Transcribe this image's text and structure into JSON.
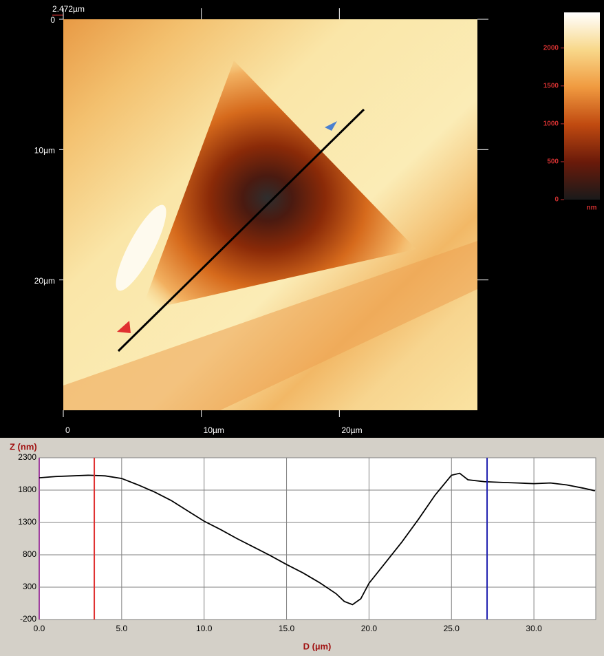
{
  "chart_data": [
    {
      "type": "image",
      "scale_label": "2.472µm",
      "xlim": [
        0,
        30
      ],
      "ylim": [
        0,
        30
      ],
      "xticks": [
        0,
        {
          "value": 10,
          "label": "10µm"
        },
        {
          "value": 20,
          "label": "20µm"
        }
      ],
      "yticks": [
        0,
        {
          "value": 10,
          "label": "10µm"
        },
        {
          "value": 20,
          "label": "20µm"
        }
      ],
      "colorbar": {
        "label": "nm",
        "zlim": [
          0,
          2470
        ],
        "ticks": [
          0,
          500,
          1000,
          1500,
          2000
        ]
      }
    },
    {
      "type": "line",
      "ylabel": "Z (nm)",
      "xlabel": "D (µm)",
      "xlim": [
        0,
        33.75
      ],
      "ylim": [
        -200,
        2300
      ],
      "xticks": [
        {
          "value": 0,
          "label": "0.0"
        },
        {
          "value": 5,
          "label": "5.0"
        },
        {
          "value": 10,
          "label": "10.0"
        },
        {
          "value": 15,
          "label": "15.0"
        },
        {
          "value": 20,
          "label": "20.0"
        },
        {
          "value": 25,
          "label": "25.0"
        },
        {
          "value": 30,
          "label": "30.0"
        }
      ],
      "yticks": [
        -200,
        300,
        800,
        1300,
        1800,
        2300
      ],
      "grid": true,
      "x": [
        0,
        1,
        2,
        3,
        4,
        5,
        6,
        7,
        8,
        9,
        10,
        11,
        12,
        13,
        14,
        15,
        16,
        17,
        18,
        18.5,
        19,
        19.5,
        20,
        21,
        22,
        23,
        24,
        25,
        25.5,
        26,
        27,
        28,
        29,
        30,
        31,
        32,
        33,
        33.7
      ],
      "series": [
        {
          "color": "#000000",
          "values": [
            1990,
            2010,
            2020,
            2030,
            2020,
            1980,
            1880,
            1770,
            1640,
            1480,
            1320,
            1190,
            1050,
            920,
            790,
            650,
            520,
            370,
            200,
            80,
            30,
            120,
            360,
            680,
            1000,
            1350,
            1720,
            2030,
            2060,
            1960,
            1930,
            1920,
            1910,
            1900,
            1910,
            1880,
            1830,
            1790
          ]
        }
      ],
      "cursors": [
        {
          "x": 3.34,
          "color": "#e03030"
        },
        {
          "x": 27.16,
          "color": "#2020b0"
        }
      ]
    }
  ]
}
